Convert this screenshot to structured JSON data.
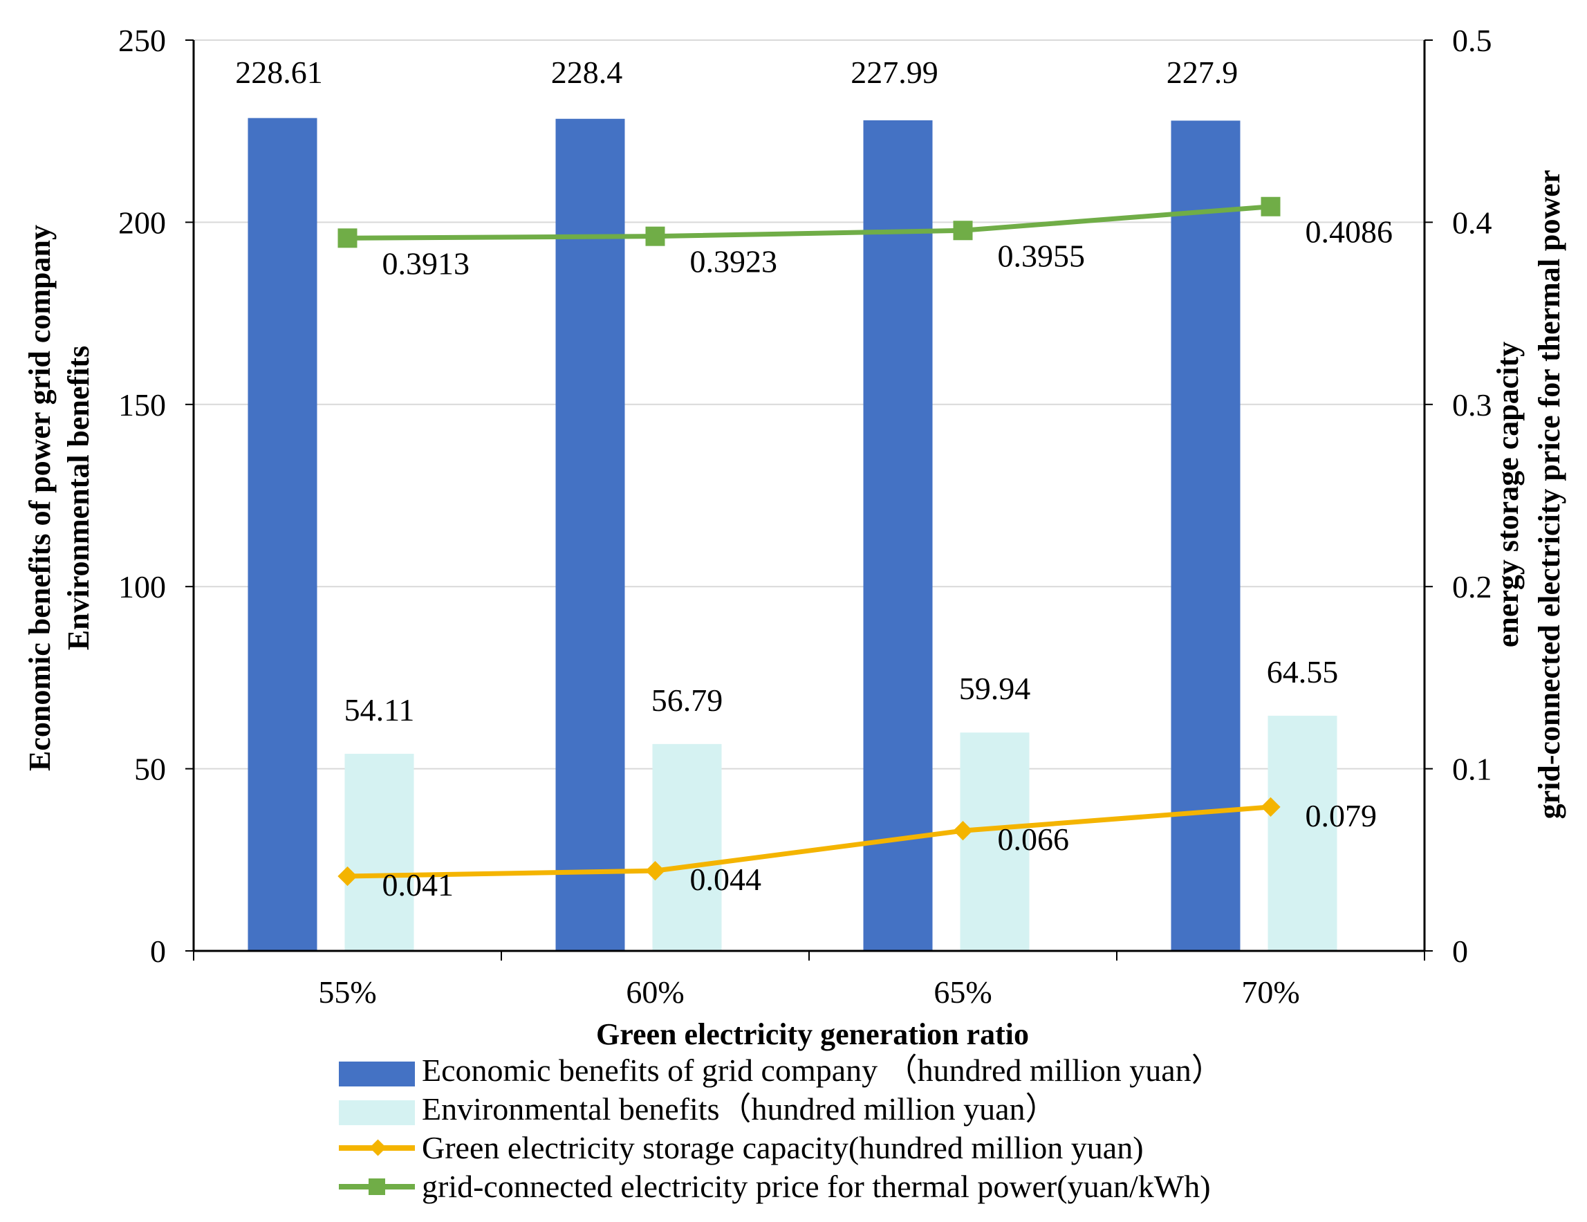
{
  "chart_data": {
    "type": "bar",
    "categories": [
      "55%",
      "60%",
      "65%",
      "70%"
    ],
    "xlabel": "Green electricity generation ratio",
    "ylabel_left": [
      "Economic benefits of power grid company",
      "Environmental benefits"
    ],
    "ylabel_right": [
      "energy storage capacity",
      "grid-connected electricity price for thermal power"
    ],
    "ylim_left": [
      0,
      250
    ],
    "yticks_left": [
      "0",
      "50",
      "100",
      "150",
      "200",
      "250"
    ],
    "ylim_right": [
      0,
      0.5
    ],
    "yticks_right": [
      "0",
      "0.1",
      "0.2",
      "0.3",
      "0.4",
      "0.5"
    ],
    "bar_series": [
      {
        "name": "Economic benefits of grid company （hundred million yuan）",
        "values": [
          228.61,
          228.4,
          227.99,
          227.9
        ],
        "labels": [
          "228.61",
          "228.4",
          "227.99",
          "227.9"
        ],
        "color": "#4472c4"
      },
      {
        "name": "Environmental benefits（hundred million yuan）",
        "values": [
          54.11,
          56.79,
          59.94,
          64.55
        ],
        "labels": [
          "54.11",
          "56.79",
          "59.94",
          "64.55"
        ],
        "color": "#d5f2f2"
      }
    ],
    "line_series": [
      {
        "name": "Green electricity storage capacity(hundred million yuan)",
        "values": [
          0.041,
          0.044,
          0.066,
          0.079
        ],
        "labels": [
          "0.041",
          "0.044",
          "0.066",
          "0.079"
        ],
        "color": "#f4b400",
        "marker": "diamond",
        "axis": "right"
      },
      {
        "name": "grid-connected electricity price for thermal power(yuan/kWh)",
        "values": [
          0.3913,
          0.3923,
          0.3955,
          0.4086
        ],
        "labels": [
          "0.3913",
          "0.3923",
          "0.3955",
          "0.4086"
        ],
        "color": "#70ad47",
        "marker": "square",
        "axis": "right"
      }
    ],
    "grid": true,
    "legend_position": "bottom"
  }
}
